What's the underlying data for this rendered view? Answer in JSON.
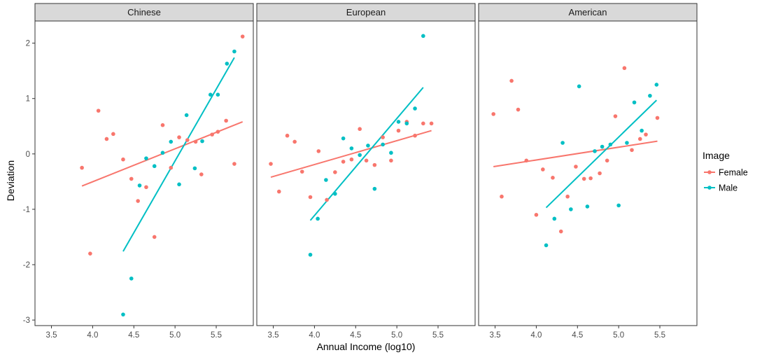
{
  "chart_data": {
    "type": "scatter",
    "xlabel": "Annual Income (log10)",
    "ylabel": "Deviation",
    "xlim": [
      3.3,
      5.95
    ],
    "ylim": [
      -3.1,
      2.4
    ],
    "x_ticks": [
      3.5,
      4.0,
      4.5,
      5.0,
      5.5
    ],
    "x_tick_labels": [
      "3.5",
      "4.0",
      "4.5",
      "5.0",
      "5.5"
    ],
    "y_ticks": [
      -3,
      -2,
      -1,
      0,
      1,
      2
    ],
    "y_tick_labels": [
      "-3",
      "-2",
      "-1",
      "0",
      "1",
      "2"
    ],
    "grid": false,
    "legend": {
      "title": "Image",
      "placement": "right",
      "entries": [
        "Female",
        "Male"
      ]
    },
    "colors": {
      "Female": "#F8766D",
      "Male": "#00BFC4"
    },
    "panels": [
      {
        "title": "Chinese",
        "series": [
          {
            "name": "Female",
            "points": [
              [
                3.87,
                -0.25
              ],
              [
                3.97,
                -1.8
              ],
              [
                4.07,
                0.78
              ],
              [
                4.17,
                0.27
              ],
              [
                4.25,
                0.36
              ],
              [
                4.37,
                -0.1
              ],
              [
                4.47,
                -0.45
              ],
              [
                4.55,
                -0.85
              ],
              [
                4.65,
                -0.6
              ],
              [
                4.75,
                -1.5
              ],
              [
                4.85,
                0.52
              ],
              [
                4.95,
                -0.25
              ],
              [
                5.05,
                0.3
              ],
              [
                5.15,
                0.25
              ],
              [
                5.25,
                0.22
              ],
              [
                5.32,
                -0.37
              ],
              [
                5.45,
                0.35
              ],
              [
                5.52,
                0.4
              ],
              [
                5.62,
                0.6
              ],
              [
                5.72,
                -0.18
              ],
              [
                5.82,
                2.12
              ]
            ],
            "fit": [
              [
                3.87,
                -0.58
              ],
              [
                5.82,
                0.58
              ]
            ]
          },
          {
            "name": "Male",
            "points": [
              [
                4.37,
                -2.9
              ],
              [
                4.47,
                -2.25
              ],
              [
                4.57,
                -0.57
              ],
              [
                4.65,
                -0.08
              ],
              [
                4.75,
                -0.22
              ],
              [
                4.85,
                0.02
              ],
              [
                4.95,
                0.22
              ],
              [
                5.05,
                -0.55
              ],
              [
                5.14,
                0.7
              ],
              [
                5.24,
                -0.26
              ],
              [
                5.33,
                0.23
              ],
              [
                5.43,
                1.07
              ],
              [
                5.52,
                1.07
              ],
              [
                5.63,
                1.63
              ],
              [
                5.72,
                1.85
              ]
            ],
            "fit": [
              [
                4.37,
                -1.76
              ],
              [
                5.72,
                1.74
              ]
            ]
          }
        ]
      },
      {
        "title": "European",
        "series": [
          {
            "name": "Female",
            "points": [
              [
                3.47,
                -0.18
              ],
              [
                3.57,
                -0.68
              ],
              [
                3.67,
                0.33
              ],
              [
                3.76,
                0.22
              ],
              [
                3.85,
                -0.32
              ],
              [
                3.95,
                -0.78
              ],
              [
                4.05,
                0.05
              ],
              [
                4.15,
                -0.83
              ],
              [
                4.25,
                -0.33
              ],
              [
                4.35,
                -0.14
              ],
              [
                4.45,
                -0.1
              ],
              [
                4.55,
                0.45
              ],
              [
                4.63,
                -0.12
              ],
              [
                4.73,
                -0.2
              ],
              [
                4.83,
                0.3
              ],
              [
                4.93,
                -0.12
              ],
              [
                5.02,
                0.42
              ],
              [
                5.12,
                0.58
              ],
              [
                5.22,
                0.33
              ],
              [
                5.32,
                0.55
              ],
              [
                5.42,
                0.55
              ]
            ],
            "fit": [
              [
                3.47,
                -0.42
              ],
              [
                5.42,
                0.42
              ]
            ]
          },
          {
            "name": "Male",
            "points": [
              [
                3.95,
                -1.82
              ],
              [
                4.04,
                -1.17
              ],
              [
                4.14,
                -0.47
              ],
              [
                4.25,
                -0.72
              ],
              [
                4.35,
                0.28
              ],
              [
                4.45,
                0.1
              ],
              [
                4.55,
                -0.02
              ],
              [
                4.65,
                0.15
              ],
              [
                4.73,
                -0.63
              ],
              [
                4.83,
                0.17
              ],
              [
                4.93,
                0.02
              ],
              [
                5.02,
                0.58
              ],
              [
                5.12,
                0.55
              ],
              [
                5.22,
                0.82
              ],
              [
                5.32,
                2.13
              ]
            ],
            "fit": [
              [
                3.95,
                -1.2
              ],
              [
                5.32,
                1.2
              ]
            ]
          }
        ]
      },
      {
        "title": "American",
        "series": [
          {
            "name": "Female",
            "points": [
              [
                3.48,
                0.72
              ],
              [
                3.58,
                -0.77
              ],
              [
                3.7,
                1.32
              ],
              [
                3.78,
                0.8
              ],
              [
                3.88,
                -0.12
              ],
              [
                4.0,
                -1.1
              ],
              [
                4.08,
                -0.28
              ],
              [
                4.2,
                -0.43
              ],
              [
                4.3,
                -1.4
              ],
              [
                4.38,
                -0.77
              ],
              [
                4.48,
                -0.23
              ],
              [
                4.58,
                -0.45
              ],
              [
                4.66,
                -0.44
              ],
              [
                4.77,
                -0.35
              ],
              [
                4.86,
                -0.12
              ],
              [
                4.96,
                0.68
              ],
              [
                5.07,
                1.55
              ],
              [
                5.16,
                0.07
              ],
              [
                5.26,
                0.27
              ],
              [
                5.33,
                0.35
              ],
              [
                5.47,
                0.65
              ]
            ],
            "fit": [
              [
                3.48,
                -0.23
              ],
              [
                5.47,
                0.23
              ]
            ]
          },
          {
            "name": "Male",
            "points": [
              [
                4.12,
                -1.65
              ],
              [
                4.22,
                -1.17
              ],
              [
                4.32,
                0.2
              ],
              [
                4.42,
                -1.0
              ],
              [
                4.52,
                1.22
              ],
              [
                4.62,
                -0.95
              ],
              [
                4.71,
                0.05
              ],
              [
                4.8,
                0.13
              ],
              [
                4.9,
                0.17
              ],
              [
                5.0,
                -0.93
              ],
              [
                5.1,
                0.2
              ],
              [
                5.19,
                0.93
              ],
              [
                5.28,
                0.42
              ],
              [
                5.38,
                1.05
              ],
              [
                5.46,
                1.25
              ]
            ],
            "fit": [
              [
                4.12,
                -0.97
              ],
              [
                5.46,
                0.97
              ]
            ]
          }
        ]
      }
    ]
  }
}
